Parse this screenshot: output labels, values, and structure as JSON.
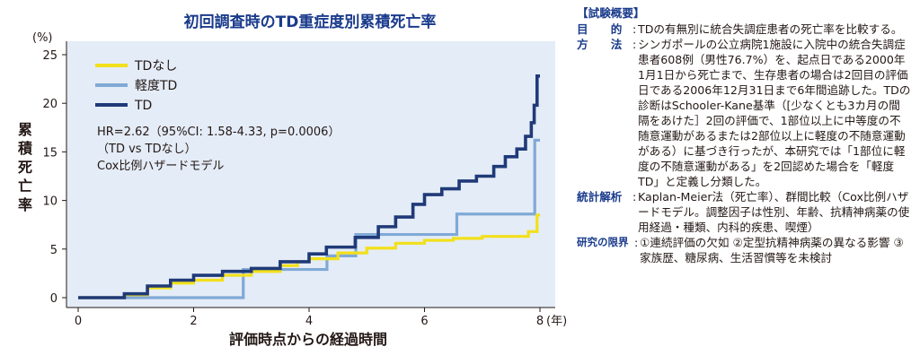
{
  "chart_data": {
    "type": "line",
    "title": "初回調査時のTD重症度別累積死亡率",
    "xlabel": "評価時点からの経過時間",
    "x_unit": "(年)",
    "ylabel": "累積死亡率",
    "y_unit": "(%)",
    "xlim": [
      0,
      8
    ],
    "ylim": [
      0,
      25
    ],
    "x_ticks": [
      0,
      2,
      4,
      6,
      8
    ],
    "y_ticks": [
      0,
      5,
      10,
      15,
      20,
      25
    ],
    "grid": false,
    "legend_position": "top-left",
    "background": "#e4ecf7",
    "series": [
      {
        "name": "TDなし",
        "color": "#f2e01a",
        "x": [
          0,
          0.8,
          1.2,
          1.6,
          2.0,
          2.5,
          3.0,
          3.5,
          3.8,
          4.0,
          4.5,
          5.0,
          5.5,
          6.0,
          6.5,
          7.0,
          7.8,
          7.95,
          8.0
        ],
        "y": [
          0,
          0.3,
          1.0,
          1.5,
          1.8,
          2.3,
          2.7,
          3.3,
          3.7,
          4.0,
          4.6,
          5.1,
          5.6,
          5.9,
          6.1,
          6.3,
          6.8,
          8.5,
          8.5
        ]
      },
      {
        "name": "軽度TD",
        "color": "#80a9d6",
        "x": [
          0,
          2.85,
          2.86,
          4.3,
          4.31,
          4.8,
          4.81,
          6.55,
          6.56,
          7.9,
          7.91,
          8.0
        ],
        "y": [
          0,
          0,
          2.9,
          2.9,
          4.3,
          4.3,
          6.5,
          6.5,
          8.6,
          8.6,
          16.2,
          16.2
        ]
      },
      {
        "name": "TD",
        "color": "#1f3a78",
        "x": [
          0,
          0.8,
          1.2,
          1.6,
          2.0,
          2.5,
          3.0,
          3.5,
          4.0,
          4.3,
          4.8,
          5.2,
          5.5,
          5.8,
          6.0,
          6.3,
          6.6,
          6.9,
          7.2,
          7.4,
          7.6,
          7.75,
          7.85,
          7.9,
          7.95,
          8.0
        ],
        "y": [
          0,
          0.4,
          1.2,
          1.8,
          2.3,
          2.7,
          3.0,
          3.7,
          4.5,
          5.2,
          6.2,
          7.3,
          8.3,
          9.6,
          10.6,
          11.2,
          12.0,
          12.5,
          13.5,
          14.5,
          15.3,
          16.6,
          18.0,
          19.8,
          22.8,
          22.8
        ]
      }
    ],
    "annotations": [
      "HR=2.62（95%CI: 1.58-4.33, p=0.0006）",
      "（TD vs TDなし）",
      "Cox比例ハザードモデル"
    ]
  },
  "overview": {
    "heading": "【試験概要】",
    "rows": [
      {
        "label": "目　　的",
        "text": "TDの有無別に統合失調症患者の死亡率を比較する。"
      },
      {
        "label": "方　　法",
        "text": "シンガポールの公立病院1施設に入院中の統合失調症患者608例（男性76.7%）を、起点日である2000年1月1日から死亡まで、生存患者の場合は2回目の評価日である2006年12月31日まで6年間追跡した。TDの診断はSchooler-Kane基準（[少なくとも3カ月の間隔をあけた］2回の評価で、1部位以上に中等度の不随意運動があるまたは2部位以上に軽度の不随意運動がある）に基づき行ったが、本研究では「1部位に軽度の不随意運動がある」を2回認めた場合を「軽度TD」と定義し分類した。"
      },
      {
        "label": "統計解析",
        "text": "Kaplan-Meier法（死亡率）、群間比較（Cox比例ハザードモデル。調整因子は性別、年齢、抗精神病薬の使用経過・種類、内科的疾患、喫煙）"
      },
      {
        "label": "研究の限界",
        "text": "①連続評価の欠如 ②定型抗精神病薬の異なる影響 ③家族歴、糖尿病、生活習慣等を未検討"
      }
    ]
  }
}
